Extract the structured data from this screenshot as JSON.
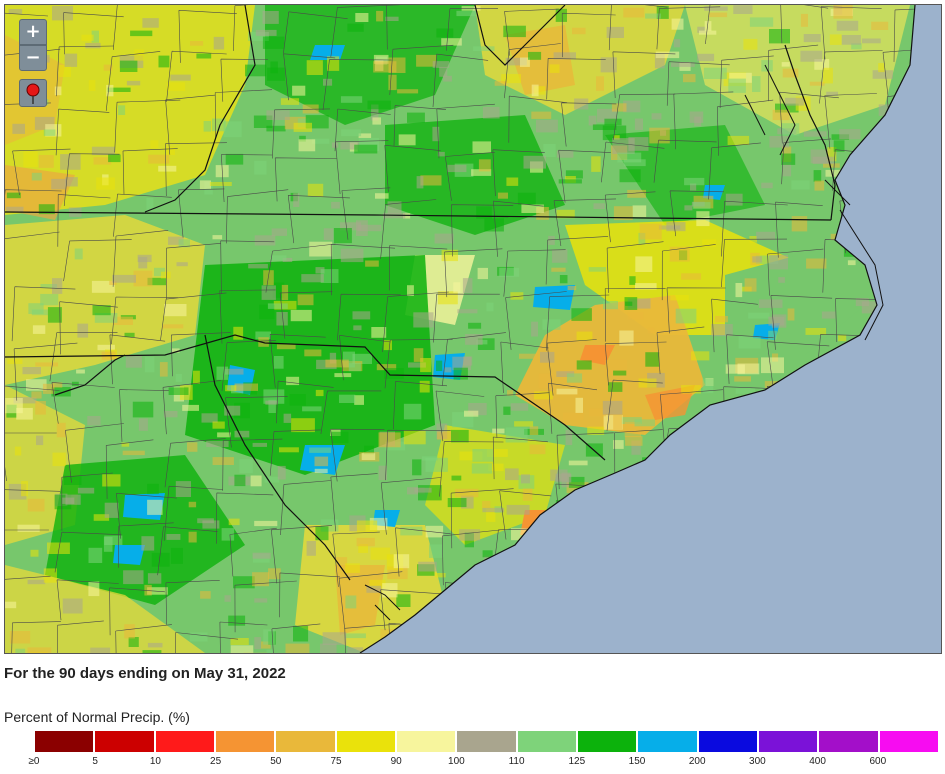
{
  "caption": "For the 90 days ending on May 31, 2022",
  "legend": {
    "title": "Percent of Normal Precip. (%)",
    "colors": [
      "#8b0000",
      "#cc0000",
      "#ff1a1a",
      "#f59433",
      "#e9b83a",
      "#eae20b",
      "#f7f59d",
      "#a9a58e",
      "#7ed37a",
      "#0cb20c",
      "#06aee9",
      "#0a0adf",
      "#7b12d8",
      "#a30fc9",
      "#f70cf1"
    ],
    "ticks": [
      "≥0",
      "5",
      "10",
      "25",
      "50",
      "75",
      "90",
      "100",
      "110",
      "125",
      "150",
      "200",
      "300",
      "400",
      "600"
    ]
  },
  "controls": {
    "zoom_in": "+",
    "zoom_out": "−"
  },
  "map": {
    "ocean_color": "#9cb2cc",
    "base_color": "#77c76c"
  }
}
